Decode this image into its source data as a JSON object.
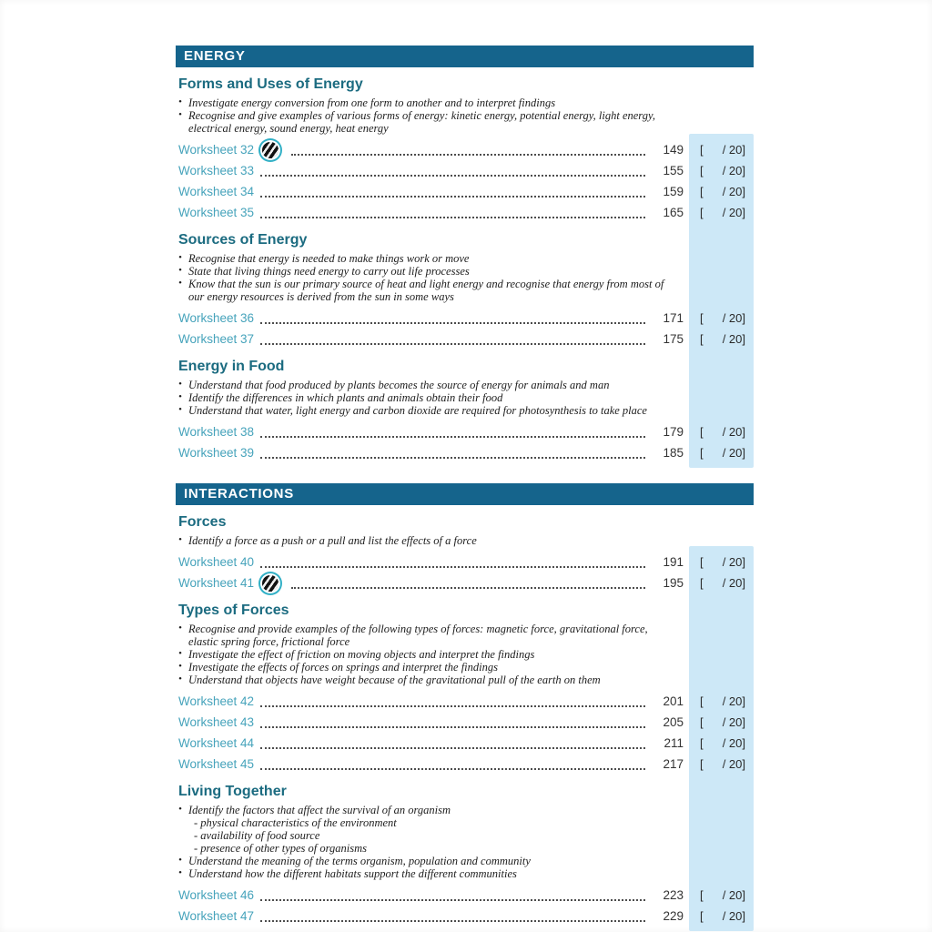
{
  "score": {
    "open": "[",
    "close": "/ 20]"
  },
  "colors": {
    "section_bar": "#15648c",
    "sub_heading": "#1b6b80",
    "worksheet_link": "#46a3bb",
    "score_box_background": "#cde8f7",
    "badge_ring": "#32b0c6"
  },
  "icons": {
    "worksheet_badge": "striped-sphere-icon"
  },
  "sections": [
    {
      "title": "ENERGY",
      "subsections": [
        {
          "heading": "Forms and Uses of Energy",
          "objectives": [
            "Investigate energy conversion from one form to another and to interpret findings",
            "Recognise and give examples of various forms of energy: kinetic energy, potential energy, light energy, electrical energy, sound energy, heat energy"
          ],
          "worksheets": [
            {
              "label": "Worksheet 32",
              "page": "149"
            },
            {
              "label": "Worksheet 33",
              "page": "155"
            },
            {
              "label": "Worksheet 34",
              "page": "159"
            },
            {
              "label": "Worksheet 35",
              "page": "165"
            }
          ]
        },
        {
          "heading": "Sources of Energy",
          "objectives": [
            "Recognise that energy is needed to make things work or move",
            "State that living things need energy to carry out life processes",
            "Know that the sun is our primary source of heat and light energy and recognise that energy from most of our energy resources is derived from the sun in some ways"
          ],
          "worksheets": [
            {
              "label": "Worksheet 36",
              "page": "171"
            },
            {
              "label": "Worksheet 37",
              "page": "175"
            }
          ]
        },
        {
          "heading": "Energy in Food",
          "objectives": [
            "Understand that food produced by plants becomes the source of energy for animals and man",
            "Identify the differences in which plants and animals obtain their food",
            "Understand that water, light energy and carbon dioxide are required for photosynthesis to take place"
          ],
          "worksheets": [
            {
              "label": "Worksheet 38",
              "page": "179"
            },
            {
              "label": "Worksheet 39",
              "page": "185"
            }
          ]
        }
      ]
    },
    {
      "title": "INTERACTIONS",
      "subsections": [
        {
          "heading": "Forces",
          "objectives": [
            "Identify a force as a push or a pull and list the effects of a force"
          ],
          "worksheets": [
            {
              "label": "Worksheet 40",
              "page": "191"
            },
            {
              "label": "Worksheet 41",
              "page": "195"
            }
          ]
        },
        {
          "heading": "Types of Forces",
          "objectives": [
            "Recognise and provide examples of the following types of forces: magnetic force,  gravitational force, elastic spring force, frictional force",
            "Investigate the effect of friction on moving objects and interpret the findings",
            "Investigate the effects of forces on springs and interpret the findings",
            "Understand that objects have weight because of the gravitational pull of the earth on them"
          ],
          "worksheets": [
            {
              "label": "Worksheet 42",
              "page": "201"
            },
            {
              "label": "Worksheet 43",
              "page": "205"
            },
            {
              "label": "Worksheet 44",
              "page": "211"
            },
            {
              "label": "Worksheet 45",
              "page": "217"
            }
          ]
        },
        {
          "heading": "Living Together",
          "objectives": [
            "Identify the factors that affect the survival of an organism",
            "- physical characteristics of the environment",
            "- availability of food source",
            "- presence of other types of organisms",
            "Understand the meaning of the terms organism, population and community",
            "Understand how the different habitats support the different communities"
          ],
          "worksheets": [
            {
              "label": "Worksheet 46",
              "page": "223"
            },
            {
              "label": "Worksheet 47",
              "page": "229"
            }
          ]
        }
      ]
    }
  ]
}
